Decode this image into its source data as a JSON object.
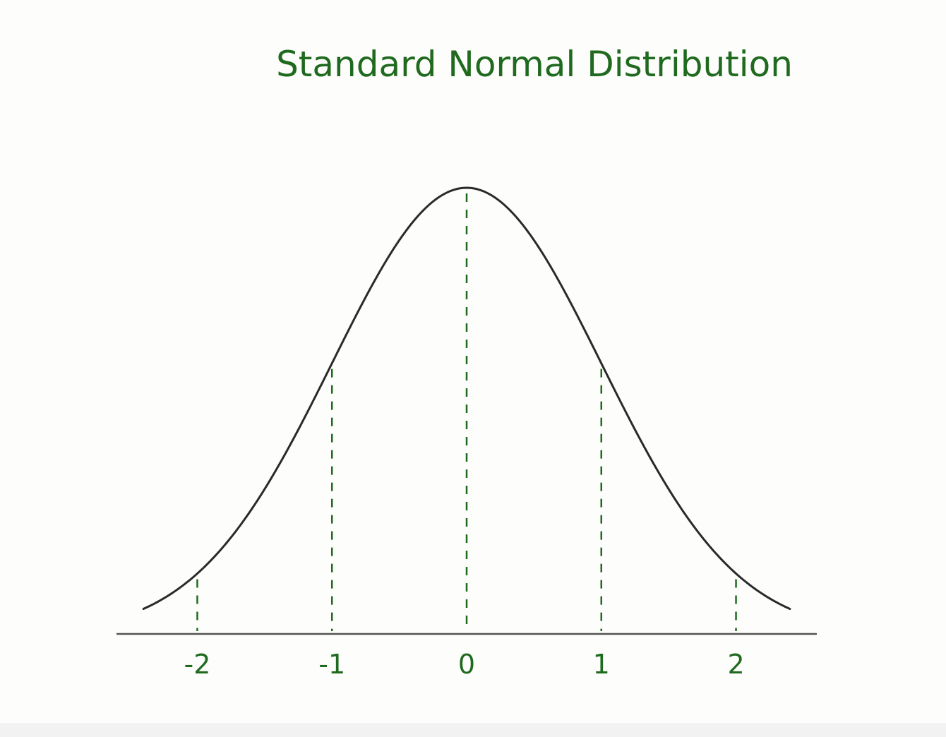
{
  "colors": {
    "background": "#fdfdfb",
    "ink_green": "#1f6a1f",
    "curve": "#2a2a2a",
    "axis": "#555555"
  },
  "chart_data": {
    "type": "line",
    "title": "Standard Normal Distribution",
    "xlabel": "",
    "ylabel": "",
    "xlim": [
      -2.6,
      2.6
    ],
    "ylim": [
      0,
      0.4
    ],
    "grid": false,
    "legend": "none",
    "curve": {
      "mean": 0,
      "sd": 1,
      "x_range": [
        -2.4,
        2.4
      ]
    },
    "ticks": [
      {
        "value": -2,
        "label": "-2"
      },
      {
        "value": -1,
        "label": "-1"
      },
      {
        "value": 0,
        "label": "0"
      },
      {
        "value": 1,
        "label": "1"
      },
      {
        "value": 2,
        "label": "2"
      }
    ],
    "guide_lines_at": [
      -2,
      -1,
      0,
      1,
      2
    ]
  }
}
